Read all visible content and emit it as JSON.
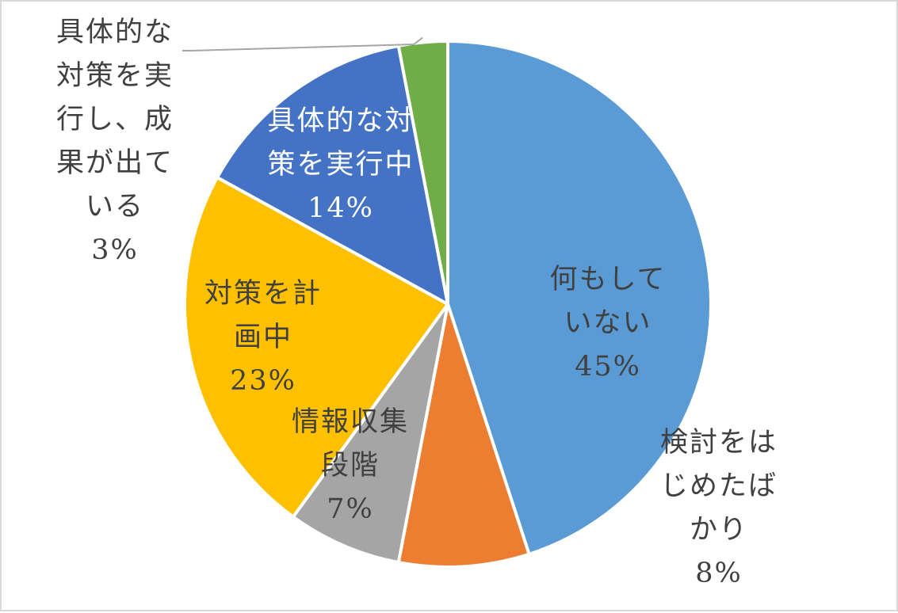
{
  "chart_data": {
    "type": "pie",
    "title": "",
    "start_angle_deg": 0,
    "direction": "clockwise",
    "slices": [
      {
        "label_lines": [
          "何もして",
          "いない"
        ],
        "value": 45,
        "value_label": "45%",
        "color": "#5b9bd5",
        "label_color": "#404040"
      },
      {
        "label_lines": [
          "検討をは",
          "じめたば",
          "かり"
        ],
        "value": 8,
        "value_label": "8%",
        "color": "#ed7d31",
        "label_color": "#404040"
      },
      {
        "label_lines": [
          "情報収集",
          "段階"
        ],
        "value": 7,
        "value_label": "7%",
        "color": "#a5a5a5",
        "label_color": "#404040"
      },
      {
        "label_lines": [
          "対策を計",
          "画中"
        ],
        "value": 23,
        "value_label": "23%",
        "color": "#ffc000",
        "label_color": "#404040"
      },
      {
        "label_lines": [
          "具体的な対",
          "策を実行中"
        ],
        "value": 14,
        "value_label": "14%",
        "color": "#4472c4",
        "label_color": "#ffffff"
      },
      {
        "label_lines": [
          "具体的な",
          "対策を実",
          "行し、成",
          "果が出て",
          "いる"
        ],
        "value": 3,
        "value_label": "3%",
        "color": "#70ad47",
        "label_color": "#404040"
      }
    ]
  }
}
